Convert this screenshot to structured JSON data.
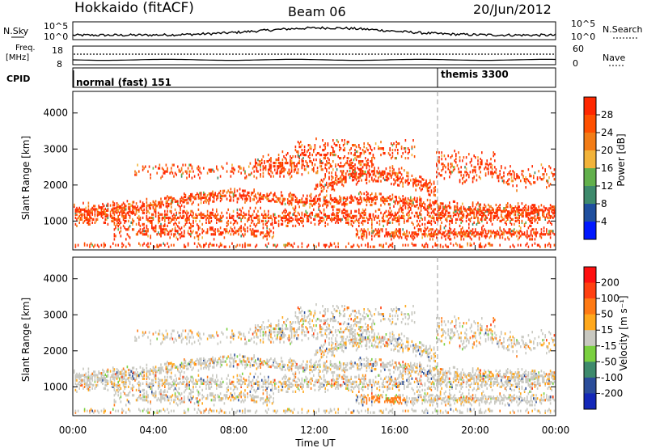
{
  "header": {
    "radar": "Hokkaido (fitACF)",
    "beam": "Beam 06",
    "date": "20/Jun/2012"
  },
  "noise_panel": {
    "left_label": "N.Sky",
    "left_ticks": [
      "10^5",
      "10^0"
    ],
    "right_ticks": [
      "10^5",
      "10^0"
    ],
    "right_label": "N.Search"
  },
  "freq_panel": {
    "left_label_1": "Freq.",
    "left_label_2": "[MHz]",
    "left_ticks": [
      "18",
      "8"
    ],
    "right_ticks": [
      "60",
      "0"
    ],
    "right_label": "Nave"
  },
  "cpid_panel": {
    "label": "CPID",
    "modes": [
      {
        "name": "normal (fast) 151",
        "start_hour": 0
      },
      {
        "name": "themis 3300",
        "start_hour": 18
      }
    ]
  },
  "chart_data": [
    {
      "type": "heatmap",
      "title": "",
      "quantity": "Power",
      "ylabel": "Slant Range [km]",
      "ylim": [
        200,
        4600
      ],
      "yticks": [
        "1000",
        "2000",
        "3000",
        "4000"
      ],
      "xlim_hours": [
        0,
        24
      ],
      "colorbar": {
        "label": "Power [dB]",
        "ticks": [
          "28",
          "24",
          "20",
          "16",
          "12",
          "8",
          "4"
        ],
        "colors": [
          "#0018ff",
          "#1f4f9e",
          "#3e8a6c",
          "#62b04c",
          "#f2b33a",
          "#f27c16",
          "#ff5000",
          "#ff2800"
        ]
      }
    },
    {
      "type": "heatmap",
      "title": "",
      "quantity": "Velocity",
      "ylabel": "Slant Range [km]",
      "ylim": [
        200,
        4600
      ],
      "yticks": [
        "1000",
        "2000",
        "3000",
        "4000"
      ],
      "xlim_hours": [
        0,
        24
      ],
      "colorbar": {
        "label": "Velocity [m s⁻¹]",
        "ticks": [
          "200",
          "100",
          "50",
          "15",
          "-15",
          "-50",
          "-100",
          "-200"
        ],
        "colors": [
          "#1428b8",
          "#2b4d9a",
          "#3e8a6c",
          "#7ad040",
          "#c8c8c0",
          "#ffa81c",
          "#ff7a14",
          "#ff4010",
          "#ff1010"
        ]
      }
    }
  ],
  "xaxis": {
    "ticks": [
      "00:00",
      "04:00",
      "08:00",
      "12:00",
      "16:00",
      "20:00",
      "00:00"
    ],
    "label": "Time UT"
  }
}
